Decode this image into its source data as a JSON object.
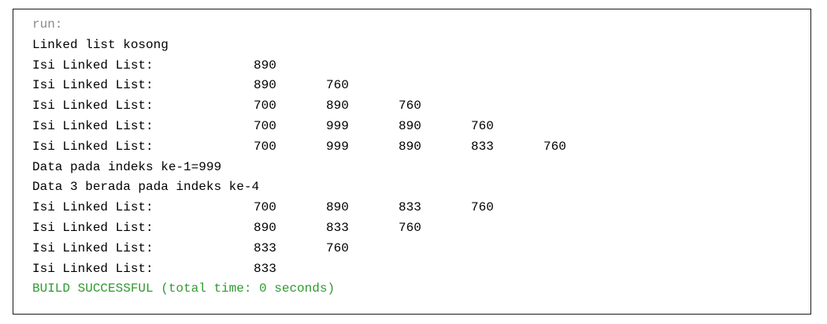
{
  "console": {
    "lines": [
      {
        "kind": "run",
        "text": "run:"
      },
      {
        "kind": "normal",
        "text": "Linked list kosong"
      },
      {
        "kind": "list",
        "label": "Isi Linked List:",
        "values": [
          "890"
        ]
      },
      {
        "kind": "list",
        "label": "Isi Linked List:",
        "values": [
          "890",
          "760"
        ]
      },
      {
        "kind": "list",
        "label": "Isi Linked List:",
        "values": [
          "700",
          "890",
          "760"
        ]
      },
      {
        "kind": "list",
        "label": "Isi Linked List:",
        "values": [
          "700",
          "999",
          "890",
          "760"
        ]
      },
      {
        "kind": "list",
        "label": "Isi Linked List:",
        "values": [
          "700",
          "999",
          "890",
          "833",
          "760"
        ]
      },
      {
        "kind": "normal",
        "text": "Data pada indeks ke-1=999"
      },
      {
        "kind": "normal",
        "text": "Data 3 berada pada indeks ke-4"
      },
      {
        "kind": "list",
        "label": "Isi Linked List:",
        "values": [
          "700",
          "890",
          "833",
          "760"
        ]
      },
      {
        "kind": "list",
        "label": "Isi Linked List:",
        "values": [
          "890",
          "833",
          "760"
        ]
      },
      {
        "kind": "list",
        "label": "Isi Linked List:",
        "values": [
          "833",
          "760"
        ]
      },
      {
        "kind": "list",
        "label": "Isi Linked List:",
        "values": [
          "833"
        ]
      },
      {
        "kind": "success",
        "text": "BUILD SUCCESSFUL (total time: 0 seconds)"
      }
    ],
    "colors": {
      "run": "#8a8a8a",
      "normal": "#000000",
      "success": "#2f9a2f",
      "border": "#1a1a1a"
    }
  }
}
